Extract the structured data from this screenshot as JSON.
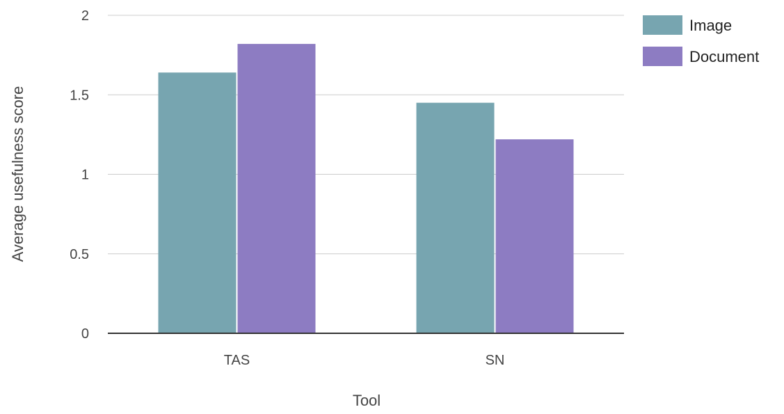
{
  "chart_data": {
    "type": "bar",
    "title": "",
    "xlabel": "Tool",
    "ylabel": "Average usefulness score",
    "categories": [
      "TAS",
      "SN"
    ],
    "series": [
      {
        "name": "Image",
        "color": "#77a5b0",
        "values": [
          1.64,
          1.45
        ]
      },
      {
        "name": "Document",
        "color": "#8d7cc2",
        "values": [
          1.82,
          1.22
        ]
      }
    ],
    "ylim": [
      0,
      2
    ],
    "yticks": [
      "0",
      "0.5",
      "1",
      "1.5",
      "2"
    ],
    "grid": true,
    "legend_position": "right"
  }
}
